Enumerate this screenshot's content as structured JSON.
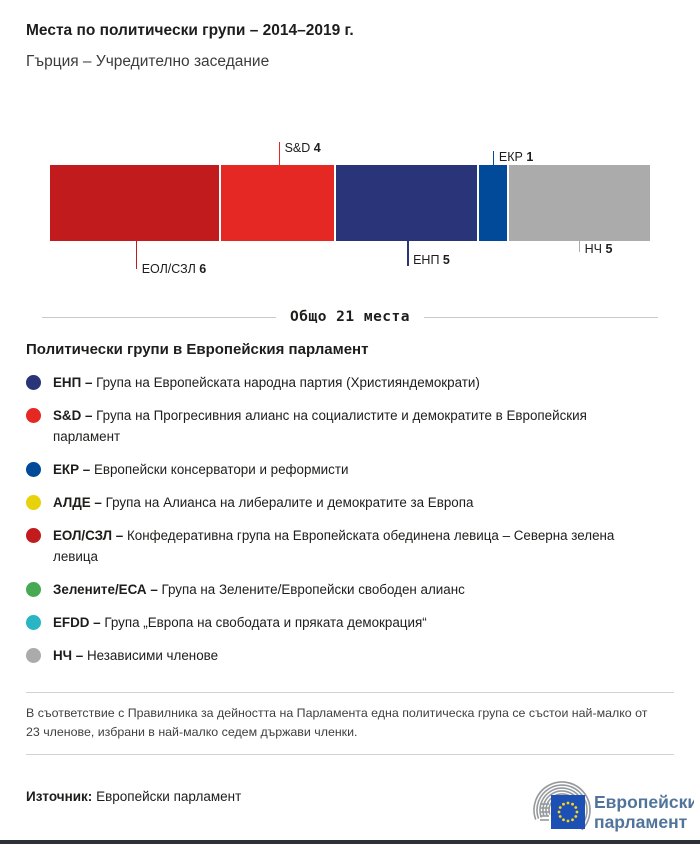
{
  "header": {
    "title": "Места по политически групи – 2014–2019 г.",
    "subtitle": "Гърция – Учредително заседание"
  },
  "chart_data": {
    "type": "bar",
    "variant": "horizontal-stacked-seat-bar",
    "title": "Места по политически групи – 2014–2019 г.",
    "region": "Гърция",
    "session": "Учредително заседание",
    "total_seats": 21,
    "total_label": "Общо 21 места",
    "segments": [
      {
        "group": "ЕОЛ/СЗЛ",
        "seats": 6,
        "color": "#c11b1e",
        "callout": "below"
      },
      {
        "group": "S&D",
        "seats": 4,
        "color": "#e52823",
        "callout": "above"
      },
      {
        "group": "ЕНП",
        "seats": 5,
        "color": "#2a3478",
        "callout": "below"
      },
      {
        "group": "ЕКР",
        "seats": 1,
        "color": "#004a99",
        "callout": "above"
      },
      {
        "group": "НЧ",
        "seats": 5,
        "color": "#ababab",
        "callout": "below"
      }
    ]
  },
  "legend": {
    "heading": "Политически групи в Европейския парламент",
    "sep": "–",
    "items": [
      {
        "abbr": "ЕНП",
        "color": "#2a3478",
        "desc": "Група на Европейската народна партия (Християндемократи)"
      },
      {
        "abbr": "S&D",
        "color": "#e52823",
        "desc": "Група на Прогресивния алианс на социалистите и демократите в Европейския парламент"
      },
      {
        "abbr": "ЕКР",
        "color": "#004a99",
        "desc": "Европейски консерватори и реформисти"
      },
      {
        "abbr": "АЛДЕ",
        "color": "#e7d20c",
        "desc": "Група на Алианса на либералите и демократите за Европа"
      },
      {
        "abbr": "ЕОЛ/СЗЛ",
        "color": "#c11b1e",
        "desc": "Конфедеративна група на Европейската обединена левица – Северна зелена левица"
      },
      {
        "abbr": "Зелените/ЕСА",
        "color": "#47a952",
        "desc": "Група на Зелените/Европейски свободен алианс"
      },
      {
        "abbr": "EFDD",
        "color": "#29b5c3",
        "desc": "Група „Европа на свободата и пряката демокрация“"
      },
      {
        "abbr": "НЧ",
        "color": "#ababab",
        "desc": "Независими членове"
      }
    ]
  },
  "footnote": {
    "text": "В съответствие с Правилника за дейността на Парламента една политическа група се състои най-малко от 23 членове, избрани в най-малко седем държави членки."
  },
  "source": {
    "label": "Източник:",
    "text": "Европейски парламент"
  },
  "logo": {
    "line1": "Европейски",
    "line2": "парламент"
  }
}
